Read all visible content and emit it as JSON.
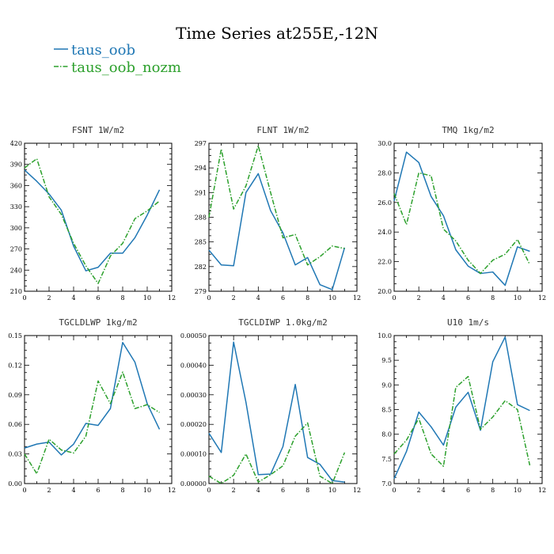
{
  "figure": {
    "title": "Time Series at255E,-12N",
    "legend": [
      {
        "label": "taus_oob",
        "color": "#1f77b4",
        "style": "solid"
      },
      {
        "label": "taus_oob_nozm",
        "color": "#2ca02c",
        "style": "dashdot"
      }
    ]
  },
  "chart_data": [
    {
      "type": "line",
      "title": "FSNT  1W/m2",
      "x": [
        0,
        1,
        2,
        3,
        4,
        5,
        6,
        7,
        8,
        9,
        10,
        11
      ],
      "xlim": [
        0,
        12
      ],
      "xticks": [
        "0",
        "2",
        "4",
        "6",
        "8",
        "10",
        "12"
      ],
      "ylim": [
        210,
        420
      ],
      "yticks": [
        "210",
        "240",
        "270",
        "300",
        "330",
        "360",
        "390",
        "420"
      ],
      "series": [
        {
          "name": "taus_oob",
          "values": [
            382,
            366,
            348,
            325,
            274,
            239,
            244,
            264,
            264,
            286,
            318,
            354
          ]
        },
        {
          "name": "taus_oob_nozm",
          "values": [
            385,
            398,
            344,
            319,
            278,
            246,
            221,
            260,
            278,
            313,
            324,
            338
          ]
        }
      ]
    },
    {
      "type": "line",
      "title": "FLNT  1W/m2",
      "x": [
        0,
        1,
        2,
        3,
        4,
        5,
        6,
        7,
        8,
        9,
        10,
        11
      ],
      "xlim": [
        0,
        12
      ],
      "xticks": [
        "0",
        "2",
        "4",
        "6",
        "8",
        "10",
        "12"
      ],
      "ylim": [
        279,
        297
      ],
      "yticks": [
        "279",
        "282",
        "285",
        "288",
        "291",
        "294",
        "297"
      ],
      "series": [
        {
          "name": "taus_oob",
          "values": [
            284.0,
            282.2,
            282.1,
            291.0,
            293.3,
            288.8,
            286.1,
            282.2,
            283.1,
            279.8,
            279.2,
            284.3
          ]
        },
        {
          "name": "taus_oob_nozm",
          "values": [
            288.0,
            296.3,
            289.0,
            291.8,
            296.7,
            291.0,
            285.5,
            285.9,
            282.2,
            283.2,
            284.5,
            284.2
          ]
        }
      ]
    },
    {
      "type": "line",
      "title": "TMQ  1kg/m2",
      "x": [
        0,
        1,
        2,
        3,
        4,
        5,
        6,
        7,
        8,
        9,
        10,
        11
      ],
      "xlim": [
        0,
        12
      ],
      "xticks": [
        "0",
        "2",
        "4",
        "6",
        "8",
        "10",
        "12"
      ],
      "ylim": [
        20.0,
        30.0
      ],
      "yticks": [
        "20.0",
        "22.0",
        "24.0",
        "26.0",
        "28.0",
        "30.0"
      ],
      "series": [
        {
          "name": "taus_oob",
          "values": [
            26.1,
            29.4,
            28.7,
            26.4,
            25.1,
            22.8,
            21.7,
            21.2,
            21.3,
            20.4,
            23.0,
            22.7
          ]
        },
        {
          "name": "taus_oob_nozm",
          "values": [
            26.6,
            24.5,
            28.0,
            27.8,
            24.2,
            23.4,
            22.1,
            21.2,
            22.1,
            22.5,
            23.5,
            21.8
          ]
        }
      ]
    },
    {
      "type": "line",
      "title": "TGCLDLWP  1kg/m2",
      "x": [
        0,
        1,
        2,
        3,
        4,
        5,
        6,
        7,
        8,
        9,
        10,
        11
      ],
      "xlim": [
        0,
        12
      ],
      "xticks": [
        "0",
        "2",
        "4",
        "6",
        "8",
        "10",
        "12"
      ],
      "ylim": [
        0.0,
        0.15
      ],
      "yticks": [
        "0.00",
        "0.03",
        "0.06",
        "0.09",
        "0.12",
        "0.15"
      ],
      "series": [
        {
          "name": "taus_oob",
          "values": [
            0.036,
            0.04,
            0.042,
            0.029,
            0.04,
            0.061,
            0.059,
            0.076,
            0.143,
            0.123,
            0.081,
            0.055
          ]
        },
        {
          "name": "taus_oob_nozm",
          "values": [
            0.03,
            0.01,
            0.045,
            0.034,
            0.031,
            0.048,
            0.104,
            0.081,
            0.113,
            0.076,
            0.08,
            0.072
          ]
        }
      ]
    },
    {
      "type": "line",
      "title": "TGCLDIWP  1.0kg/m2",
      "x": [
        0,
        1,
        2,
        3,
        4,
        5,
        6,
        7,
        8,
        9,
        10,
        11
      ],
      "xlim": [
        0,
        12
      ],
      "xticks": [
        "0",
        "2",
        "4",
        "6",
        "8",
        "10",
        "12"
      ],
      "ylim": [
        0.0,
        0.0005
      ],
      "yticks": [
        "0.00000",
        "0.00010",
        "0.00020",
        "0.00030",
        "0.00040",
        "0.00050"
      ],
      "series": [
        {
          "name": "taus_oob",
          "values": [
            0.00017,
            0.000105,
            0.000478,
            0.000275,
            3e-05,
            3.2e-05,
            0.000125,
            0.000335,
            8.8e-05,
            6.5e-05,
            1e-05,
            5e-06
          ]
        },
        {
          "name": "taus_oob_nozm",
          "values": [
            2.5e-05,
            0.0,
            2.8e-05,
            0.0001,
            5e-06,
            3e-05,
            6e-05,
            0.00016,
            0.000205,
            2.5e-05,
            0.0,
            0.000105
          ]
        }
      ]
    },
    {
      "type": "line",
      "title": "U10  1m/s",
      "x": [
        0,
        1,
        2,
        3,
        4,
        5,
        6,
        7,
        8,
        9,
        10,
        11
      ],
      "xlim": [
        0,
        12
      ],
      "xticks": [
        "0",
        "2",
        "4",
        "6",
        "8",
        "10",
        "12"
      ],
      "ylim": [
        7.0,
        10.0
      ],
      "yticks": [
        "7.0",
        "7.5",
        "8.0",
        "8.5",
        "9.0",
        "9.5",
        "10.0"
      ],
      "series": [
        {
          "name": "taus_oob",
          "values": [
            7.1,
            7.65,
            8.45,
            8.15,
            7.78,
            8.55,
            8.85,
            8.08,
            9.47,
            9.97,
            8.6,
            8.48
          ]
        },
        {
          "name": "taus_oob_nozm",
          "values": [
            7.6,
            7.88,
            8.32,
            7.6,
            7.35,
            8.95,
            9.17,
            8.1,
            8.35,
            8.68,
            8.5,
            7.37
          ]
        }
      ]
    }
  ]
}
